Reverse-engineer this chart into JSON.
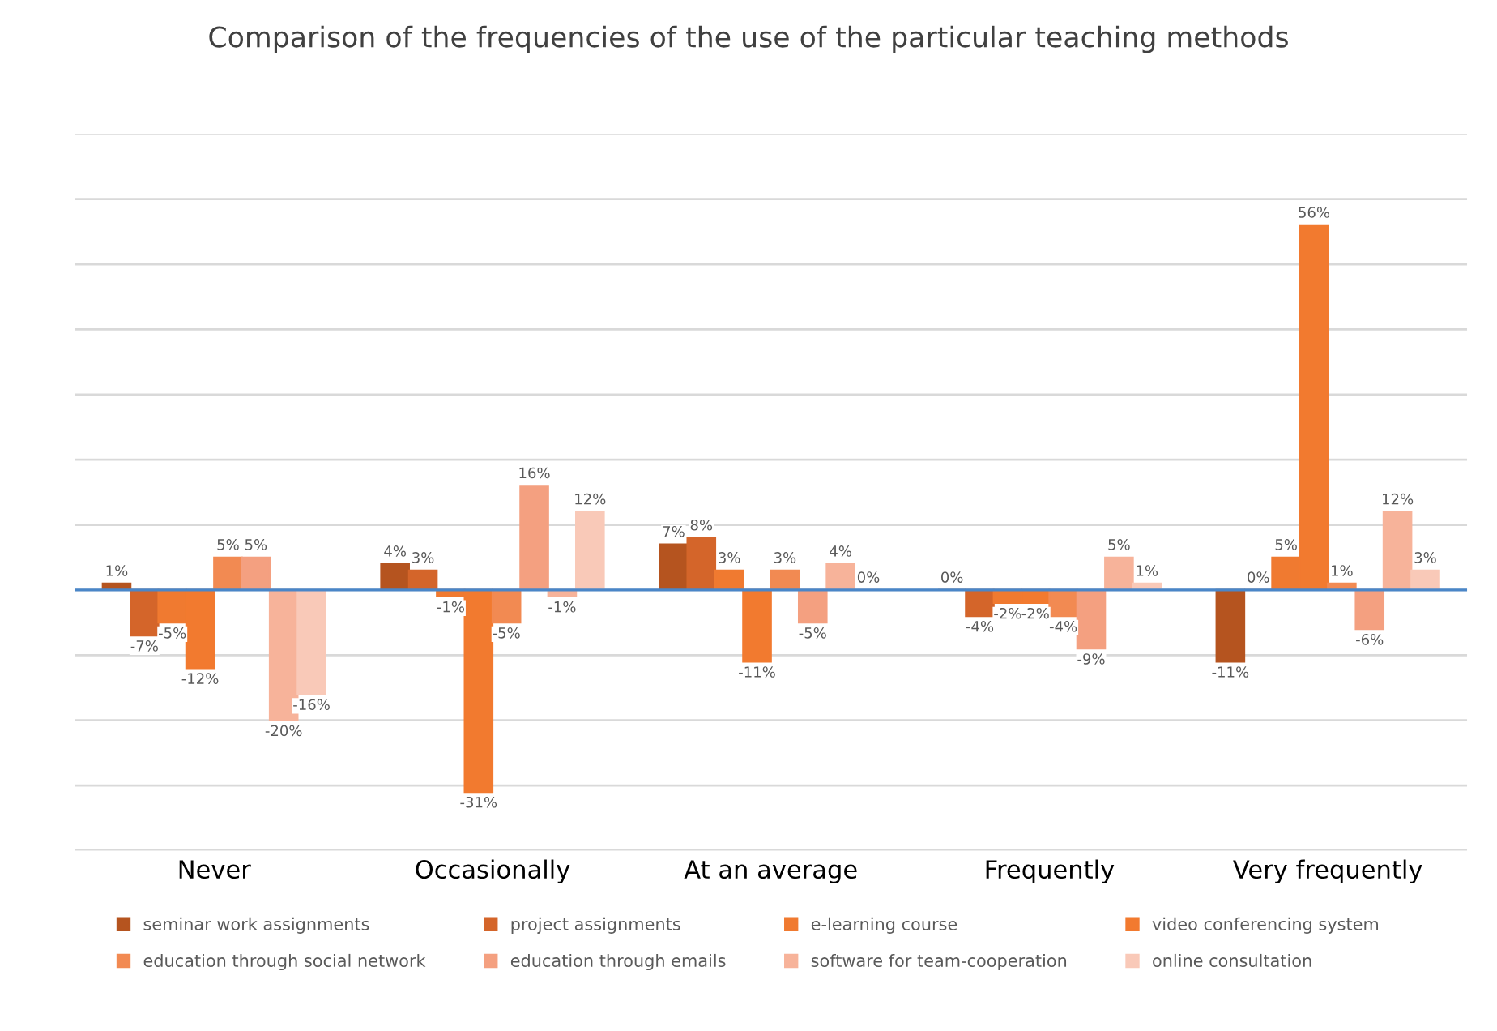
{
  "chart_data": {
    "type": "bar",
    "title": "Comparison of the frequencies of the use of the particular teaching methods",
    "categories": [
      "Never",
      "Occasionally",
      "At an average",
      "Frequently",
      "Very frequently"
    ],
    "ylim": [
      -40,
      70
    ],
    "yticks": [
      {
        "value": -40,
        "label": null
      },
      {
        "value": -30,
        "label": null
      },
      {
        "value": -20,
        "label": null
      },
      {
        "value": -10,
        "label": null
      },
      {
        "value": 0,
        "label": null
      },
      {
        "value": 10,
        "label": null
      },
      {
        "value": 20,
        "label": null
      },
      {
        "value": 30,
        "label": null
      },
      {
        "value": 40,
        "label": null
      },
      {
        "value": 50,
        "label": null
      },
      {
        "value": 60,
        "label": null
      },
      {
        "value": 70,
        "label": null
      }
    ],
    "grid": "y",
    "legend": "bottom",
    "tick_labels": "x",
    "ref_lines": [
      {
        "axis": "y",
        "value": 0,
        "color": "#4a86c8"
      }
    ],
    "series": [
      {
        "name": "seminar work assignments",
        "color": "#b5541f",
        "values": [
          1,
          4,
          7,
          0,
          -11
        ],
        "value_labels": [
          "1%",
          "4%",
          "7%",
          "0%",
          "-11%"
        ]
      },
      {
        "name": "project assignments",
        "color": "#d4652a",
        "values": [
          -7,
          3,
          8,
          -4,
          0
        ],
        "value_labels": [
          "-7%",
          "3%",
          "8%",
          "-4%",
          "0%"
        ]
      },
      {
        "name": "e-learning course",
        "color": "#f07a30",
        "values": [
          -5,
          -1,
          3,
          -2,
          5
        ],
        "value_labels": [
          "-5%",
          "-1%",
          "3%",
          "-2%",
          "5%"
        ]
      },
      {
        "name": "video conferencing system",
        "color": "#f27a2f",
        "values": [
          -12,
          -31,
          -11,
          -2,
          56
        ],
        "value_labels": [
          "-12%",
          "-31%",
          "-11%",
          "-2%",
          "56%"
        ]
      },
      {
        "name": "education through social network",
        "color": "#f28a52",
        "values": [
          5,
          -5,
          3,
          -4,
          1
        ],
        "value_labels": [
          "5%",
          "-5%",
          "3%",
          "-4%",
          "1%"
        ]
      },
      {
        "name": "education through emails",
        "color": "#f4a080",
        "values": [
          5,
          16,
          -5,
          -9,
          -6
        ],
        "value_labels": [
          "5%",
          "16%",
          "-5%",
          "-9%",
          "-6%"
        ]
      },
      {
        "name": "software for team-cooperation",
        "color": "#f7b39a",
        "values": [
          -20,
          -1,
          4,
          5,
          12
        ],
        "value_labels": [
          "-20%",
          "-1%",
          "4%",
          "5%",
          "12%"
        ]
      },
      {
        "name": "online consultation",
        "color": "#f9c9b8",
        "values": [
          -16,
          12,
          0,
          1,
          3
        ],
        "value_labels": [
          "-16%",
          "12%",
          "0%",
          "1%",
          "3%"
        ]
      }
    ]
  }
}
